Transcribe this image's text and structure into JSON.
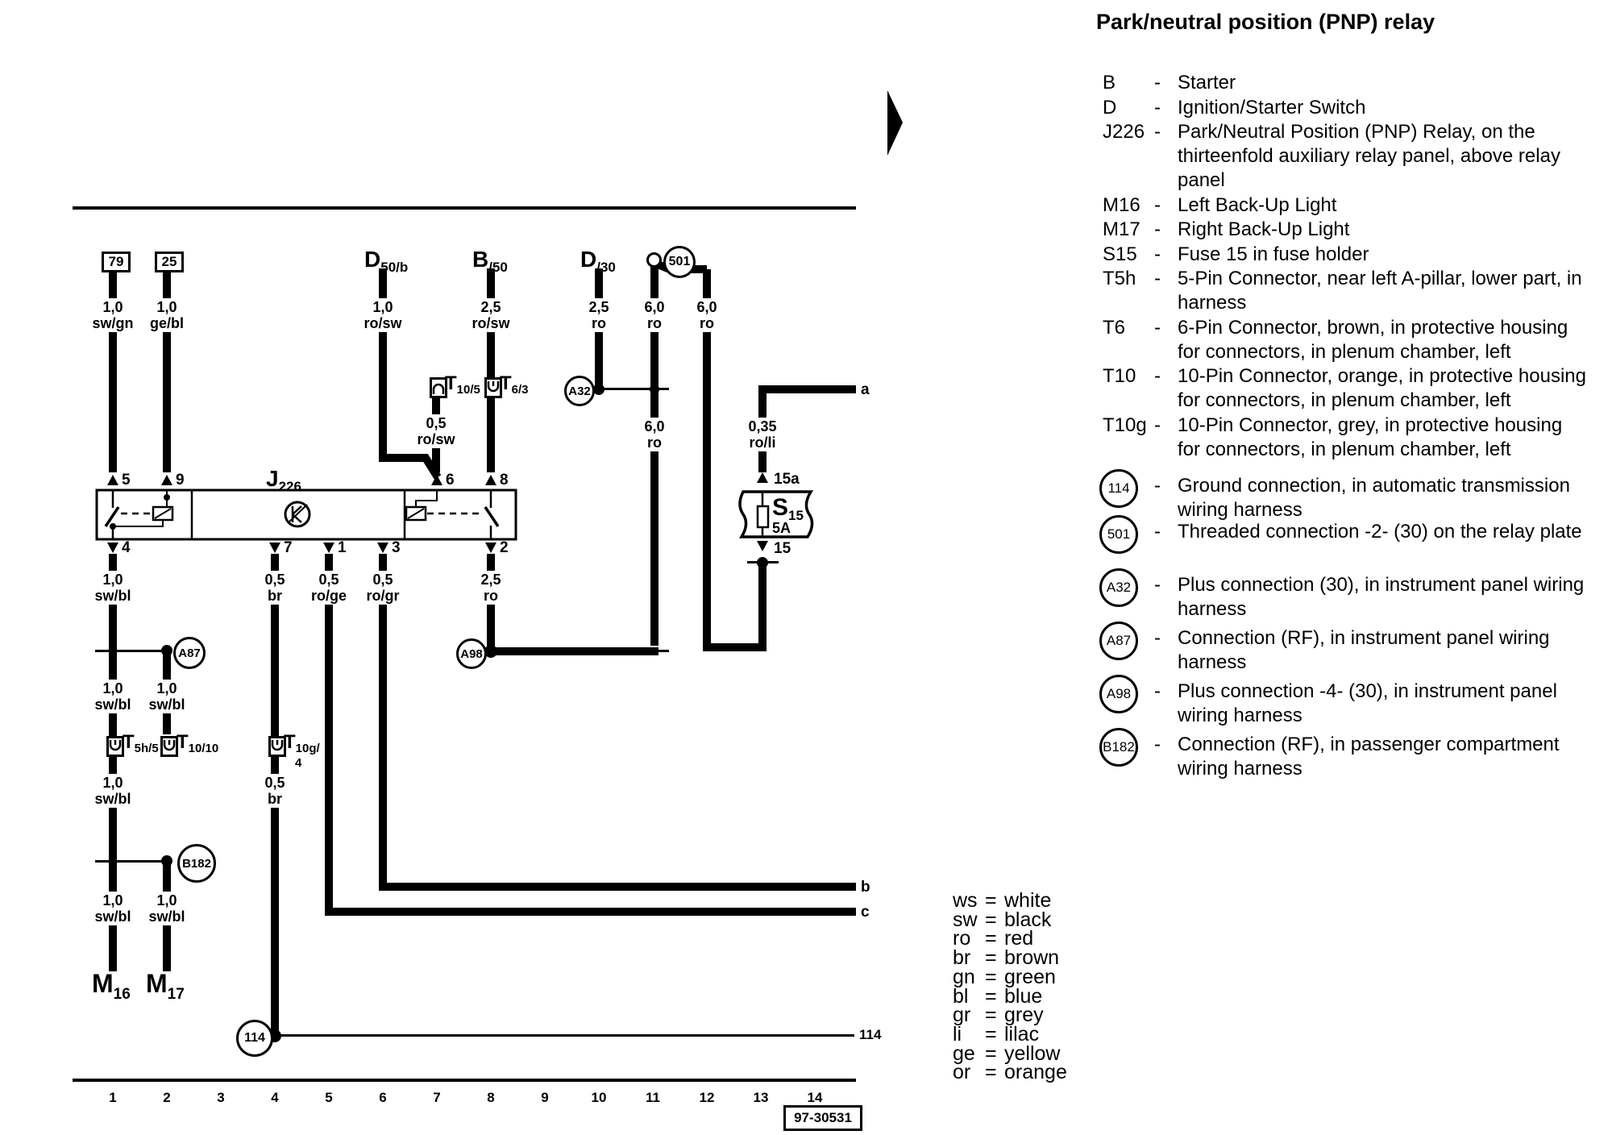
{
  "title": "Park/neutral position (PNP) relay",
  "diagram": {
    "relay": {
      "main": "J",
      "sub": "226"
    },
    "relay_pins_top": [
      "5",
      "9",
      "6",
      "8"
    ],
    "relay_pins_bottom": [
      "4",
      "7",
      "1",
      "3",
      "2"
    ],
    "terminal_boxes": [
      "79",
      "25"
    ],
    "top_sources": [
      {
        "main": "D",
        "sub": "50/b"
      },
      {
        "main": "B",
        "sub": "/50"
      },
      {
        "main": "D",
        "sub": "/30"
      }
    ],
    "wire_labels": [
      {
        "size": "1,0",
        "color": "sw/gn"
      },
      {
        "size": "1,0",
        "color": "ge/bl"
      },
      {
        "size": "1,0",
        "color": "ro/sw"
      },
      {
        "size": "2,5",
        "color": "ro/sw"
      },
      {
        "size": "2,5",
        "color": "ro"
      },
      {
        "size": "6,0",
        "color": "ro"
      },
      {
        "size": "6,0",
        "color": "ro"
      },
      {
        "size": "0,5",
        "color": "ro/sw"
      },
      {
        "size": "6,0",
        "color": "ro"
      },
      {
        "size": "0,35",
        "color": "ro/li"
      },
      {
        "size": "1,0",
        "color": "sw/bl"
      },
      {
        "size": "0,5",
        "color": "br"
      },
      {
        "size": "0,5",
        "color": "ro/ge"
      },
      {
        "size": "0,5",
        "color": "ro/gr"
      },
      {
        "size": "2,5",
        "color": "ro"
      },
      {
        "size": "1,0",
        "color": "sw/bl"
      },
      {
        "size": "1,0",
        "color": "sw/bl"
      },
      {
        "size": "1,0",
        "color": "sw/bl"
      },
      {
        "size": "0,5",
        "color": "br"
      },
      {
        "size": "1,0",
        "color": "sw/bl"
      },
      {
        "size": "1,0",
        "color": "sw/bl"
      }
    ],
    "connectors": [
      {
        "main": "T",
        "sub": "10/5"
      },
      {
        "main": "T",
        "sub": "6/3"
      },
      {
        "main": "T",
        "sub": "5h/5"
      },
      {
        "main": "T",
        "sub": "10/10"
      },
      {
        "main": "T",
        "sub": "10g/",
        "sub2": "4"
      }
    ],
    "node_circles": [
      "A32",
      "A98",
      "A87",
      "B182",
      "114",
      "501"
    ],
    "components": [
      {
        "main": "M",
        "sub": "16"
      },
      {
        "main": "M",
        "sub": "17"
      }
    ],
    "fuse": {
      "main": "S",
      "sub": "15",
      "rating": "5A",
      "term_top": "15a",
      "term_bottom": "15"
    },
    "exits": {
      "a": "a",
      "b": "b",
      "c": "c",
      "ground": "114"
    },
    "tracks": [
      "1",
      "2",
      "3",
      "4",
      "5",
      "6",
      "7",
      "8",
      "9",
      "10",
      "11",
      "12",
      "13",
      "14"
    ],
    "part_number": "97-30531"
  },
  "legend": {
    "components": [
      {
        "key": "B",
        "lines": [
          "Starter"
        ]
      },
      {
        "key": "D",
        "lines": [
          "Ignition/Starter Switch"
        ]
      },
      {
        "key": "J226",
        "lines": [
          "Park/Neutral Position (PNP) Relay, on the",
          "thirteenfold auxiliary relay panel, above relay",
          "panel"
        ]
      },
      {
        "key": "M16",
        "lines": [
          "Left Back-Up Light"
        ]
      },
      {
        "key": "M17",
        "lines": [
          "Right Back-Up Light"
        ]
      },
      {
        "key": "S15",
        "lines": [
          "Fuse 15 in fuse holder"
        ]
      },
      {
        "key": "T5h",
        "lines": [
          "5-Pin Connector, near left A-pillar, lower part, in",
          "harness"
        ]
      },
      {
        "key": "T6",
        "lines": [
          "6-Pin Connector, brown, in protective housing",
          "for connectors, in plenum chamber, left"
        ]
      },
      {
        "key": "T10",
        "lines": [
          "10-Pin Connector, orange, in protective housing",
          "for connectors, in plenum chamber, left"
        ]
      },
      {
        "key": "T10g",
        "lines": [
          "10-Pin Connector, grey, in protective housing",
          "for connectors, in plenum chamber, left"
        ]
      }
    ],
    "circle_items": [
      {
        "key": "114",
        "lines": [
          "Ground connection, in automatic transmission",
          "wiring harness"
        ]
      },
      {
        "key": "501",
        "lines": [
          "Threaded connection -2- (30) on the relay plate"
        ]
      },
      {
        "key": "A32",
        "lines": [
          "Plus connection (30), in instrument panel wiring",
          "harness"
        ]
      },
      {
        "key": "A87",
        "lines": [
          "Connection (RF), in instrument panel wiring",
          "harness"
        ]
      },
      {
        "key": "A98",
        "lines": [
          "Plus connection -4- (30), in instrument panel",
          "wiring harness"
        ]
      },
      {
        "key": "B182",
        "lines": [
          "Connection (RF), in passenger compartment",
          "wiring harness"
        ]
      }
    ]
  },
  "color_codes": [
    {
      "code": "ws",
      "name": "white"
    },
    {
      "code": "sw",
      "name": "black"
    },
    {
      "code": "ro",
      "name": "red"
    },
    {
      "code": "br",
      "name": "brown"
    },
    {
      "code": "gn",
      "name": "green"
    },
    {
      "code": "bl",
      "name": "blue"
    },
    {
      "code": "gr",
      "name": "grey"
    },
    {
      "code": "li",
      "name": "lilac"
    },
    {
      "code": "ge",
      "name": "yellow"
    },
    {
      "code": "or",
      "name": "orange"
    }
  ],
  "colors": {
    "ink": "#000000",
    "paper": "#ffffff"
  }
}
